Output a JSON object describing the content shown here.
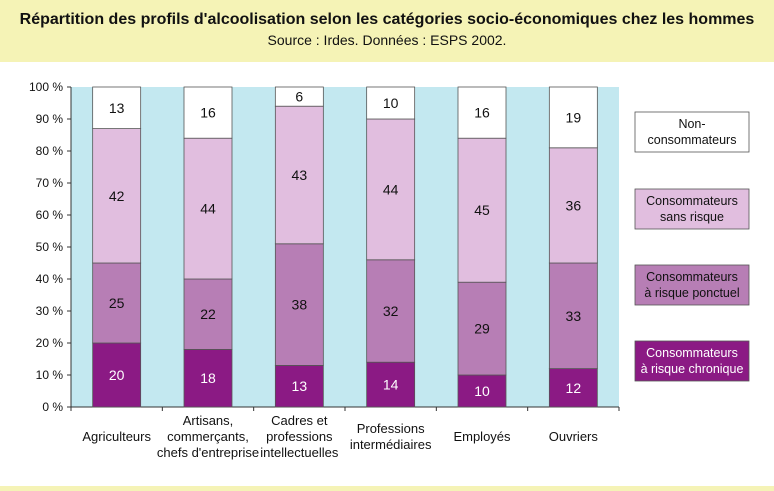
{
  "title": "Répartition des profils d'alcoolisation selon les catégories socio-économiques chez les hommes",
  "subtitle": "Source : Irdes. Données : ESPS 2002.",
  "colors": {
    "page_bg": "#f5f3b6",
    "plot_bg": "#c3e8f0",
    "chronique": "#8b1a84",
    "ponctuel": "#b77eb5",
    "sans_risque": "#e1bedf",
    "non_consommateurs": "#ffffff"
  },
  "chart_data": {
    "type": "bar",
    "stacked": true,
    "categories": [
      [
        "Agriculteurs"
      ],
      [
        "Artisans,",
        "commerçants,",
        "chefs d'entreprise"
      ],
      [
        "Cadres et",
        "professions",
        "intellectuelles"
      ],
      [
        "Professions",
        "intermédiaires"
      ],
      [
        "Employés"
      ],
      [
        "Ouvriers"
      ]
    ],
    "series": [
      {
        "name": "Consommateurs à risque chronique",
        "legend_lines": [
          "Consommateurs",
          "à risque chronique"
        ],
        "color": "#8b1a84",
        "text_color": "#ffffff",
        "values": [
          20,
          18,
          13,
          14,
          10,
          12
        ]
      },
      {
        "name": "Consommateurs à risque ponctuel",
        "legend_lines": [
          "Consommateurs",
          "à risque ponctuel"
        ],
        "color": "#b77eb5",
        "text_color": "#111111",
        "values": [
          25,
          22,
          38,
          32,
          29,
          33
        ]
      },
      {
        "name": "Consommateurs sans risque",
        "legend_lines": [
          "Consommateurs",
          "sans risque"
        ],
        "color": "#e1bedf",
        "text_color": "#111111",
        "values": [
          42,
          44,
          43,
          44,
          45,
          36
        ]
      },
      {
        "name": "Non-consommateurs",
        "legend_lines": [
          "Non-",
          "consommateurs"
        ],
        "color": "#ffffff",
        "text_color": "#111111",
        "values": [
          13,
          16,
          6,
          10,
          16,
          19
        ]
      }
    ],
    "y_ticks": [
      "0 %",
      "10 %",
      "20 %",
      "30 %",
      "40 %",
      "50 %",
      "60 %",
      "70 %",
      "80 %",
      "90 %",
      "100 %"
    ],
    "ylim": [
      0,
      100
    ],
    "grid": false,
    "legend": "right"
  }
}
